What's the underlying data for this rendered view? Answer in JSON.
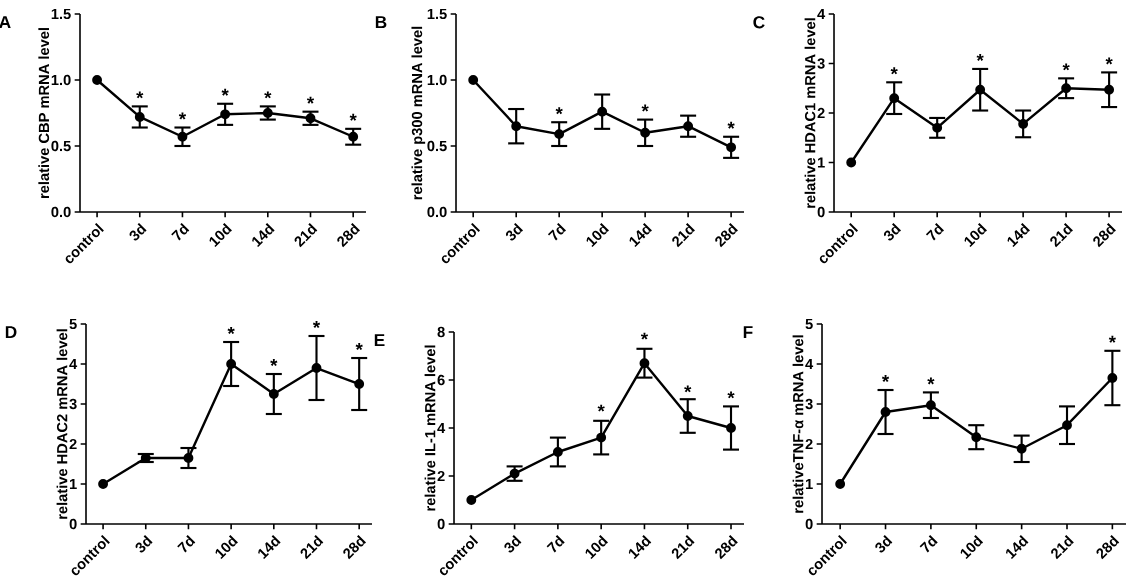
{
  "chart_data": [
    {
      "type": "line",
      "title": "A",
      "ylabel": "relative CBP mRNA level",
      "categories": [
        "control",
        "3d",
        "7d",
        "10d",
        "14d",
        "21d",
        "28d"
      ],
      "color": "#000000",
      "marker": "circle",
      "line_style": "solid",
      "values": [
        1,
        0.72,
        0.57,
        0.74,
        0.75,
        0.71,
        0.57
      ],
      "errors": [
        null,
        0.08,
        0.07,
        0.08,
        0.05,
        0.05,
        0.06
      ],
      "ylim": [
        0,
        1.5
      ],
      "yticks": [
        {
          "value": 0,
          "label": "0.0"
        },
        {
          "value": 0.5,
          "label": "0.5"
        },
        {
          "value": 1,
          "label": "1.0"
        },
        {
          "value": 1.5,
          "label": "1.5"
        }
      ],
      "annotations": [
        {
          "text": "*",
          "x": "3d",
          "y": 0.8
        },
        {
          "text": "*",
          "x": "7d",
          "y": 0.64
        },
        {
          "text": "*",
          "x": "10d",
          "y": 0.82
        },
        {
          "text": "*",
          "x": "14d",
          "y": 0.8
        },
        {
          "text": "*",
          "x": "21d",
          "y": 0.76
        },
        {
          "text": "*",
          "x": "28d",
          "y": 0.63
        }
      ]
    },
    {
      "type": "line",
      "title": "B",
      "ylabel": "relative p300 mRNA level",
      "categories": [
        "control",
        "3d",
        "7d",
        "10d",
        "14d",
        "21d",
        "28d"
      ],
      "color": "#000000",
      "marker": "circle",
      "line_style": "solid",
      "values": [
        1,
        0.65,
        0.59,
        0.76,
        0.6,
        0.65,
        0.49
      ],
      "errors": [
        null,
        0.13,
        0.09,
        0.13,
        0.1,
        0.08,
        0.08
      ],
      "ylim": [
        0,
        1.5
      ],
      "yticks": [
        {
          "value": 0,
          "label": "0.0"
        },
        {
          "value": 0.5,
          "label": "0.5"
        },
        {
          "value": 1,
          "label": "1.0"
        },
        {
          "value": 1.5,
          "label": "1.5"
        }
      ],
      "annotations": [
        {
          "text": "*",
          "x": "7d",
          "y": 0.68
        },
        {
          "text": "*",
          "x": "14d",
          "y": 0.7
        },
        {
          "text": "*",
          "x": "28d",
          "y": 0.57
        }
      ]
    },
    {
      "type": "line",
      "title": "C",
      "ylabel": "relative HDAC1 mRNA level",
      "categories": [
        "control",
        "3d",
        "7d",
        "10d",
        "14d",
        "21d",
        "28d"
      ],
      "color": "#000000",
      "marker": "circle",
      "line_style": "solid",
      "values": [
        1,
        2.3,
        1.7,
        2.47,
        1.78,
        2.5,
        2.47
      ],
      "errors": [
        null,
        0.32,
        0.2,
        0.42,
        0.27,
        0.2,
        0.35
      ],
      "ylim": [
        0,
        4
      ],
      "yticks": [
        0,
        1,
        2,
        3,
        4
      ],
      "annotations": [
        {
          "text": "*",
          "x": "3d",
          "y": 2.62
        },
        {
          "text": "*",
          "x": "10d",
          "y": 2.89
        },
        {
          "text": "*",
          "x": "21d",
          "y": 2.7
        },
        {
          "text": "*",
          "x": "28d",
          "y": 2.82
        }
      ]
    },
    {
      "type": "line",
      "title": "D",
      "ylabel": "relative HDAC2 mRNA level",
      "categories": [
        "control",
        "3d",
        "7d",
        "10d",
        "14d",
        "21d",
        "28d"
      ],
      "color": "#000000",
      "marker": "circle",
      "line_style": "solid",
      "values": [
        1,
        1.65,
        1.65,
        4.0,
        3.25,
        3.9,
        3.5
      ],
      "errors": [
        null,
        0.1,
        0.25,
        0.55,
        0.5,
        0.8,
        0.65
      ],
      "ylim": [
        0,
        5
      ],
      "yticks": [
        0,
        1,
        2,
        3,
        4,
        5
      ],
      "annotations": [
        {
          "text": "*",
          "x": "10d",
          "y": 4.55
        },
        {
          "text": "*",
          "x": "14d",
          "y": 3.75
        },
        {
          "text": "*",
          "x": "21d",
          "y": 4.7
        },
        {
          "text": "*",
          "x": "28d",
          "y": 4.15
        }
      ]
    },
    {
      "type": "line",
      "title": "E",
      "ylabel": "relative IL-1 mRNA level",
      "categories": [
        "control",
        "3d",
        "7d",
        "10d",
        "14d",
        "21d",
        "28d"
      ],
      "color": "#000000",
      "marker": "circle",
      "line_style": "solid",
      "values": [
        1,
        2.1,
        3.0,
        3.6,
        6.7,
        4.5,
        4.0
      ],
      "errors": [
        null,
        0.3,
        0.6,
        0.7,
        0.6,
        0.7,
        0.9
      ],
      "ylim": [
        0,
        8
      ],
      "yticks": [
        0,
        2,
        4,
        6,
        8
      ],
      "annotations": [
        {
          "text": "*",
          "x": "10d",
          "y": 4.35
        },
        {
          "text": "*",
          "x": "14d",
          "y": 7.35
        },
        {
          "text": "*",
          "x": "21d",
          "y": 5.15
        },
        {
          "text": "*",
          "x": "28d",
          "y": 4.9
        }
      ]
    },
    {
      "type": "line",
      "title": "F",
      "ylabel": "relativeTNF-α mRNA level",
      "categories": [
        "control",
        "3d",
        "7d",
        "10d",
        "14d",
        "21d",
        "28d"
      ],
      "color": "#000000",
      "marker": "circle",
      "line_style": "solid",
      "values": [
        1,
        2.8,
        2.97,
        2.17,
        1.88,
        2.47,
        3.65
      ],
      "errors": [
        null,
        0.55,
        0.32,
        0.3,
        0.33,
        0.47,
        0.68
      ],
      "ylim": [
        0,
        5
      ],
      "yticks": [
        0,
        1,
        2,
        3,
        4,
        5
      ],
      "annotations": [
        {
          "text": "*",
          "x": "3d",
          "y": 3.35
        },
        {
          "text": "*",
          "x": "7d",
          "y": 3.29
        },
        {
          "text": "*",
          "x": "28d",
          "y": 4.33
        }
      ]
    }
  ]
}
